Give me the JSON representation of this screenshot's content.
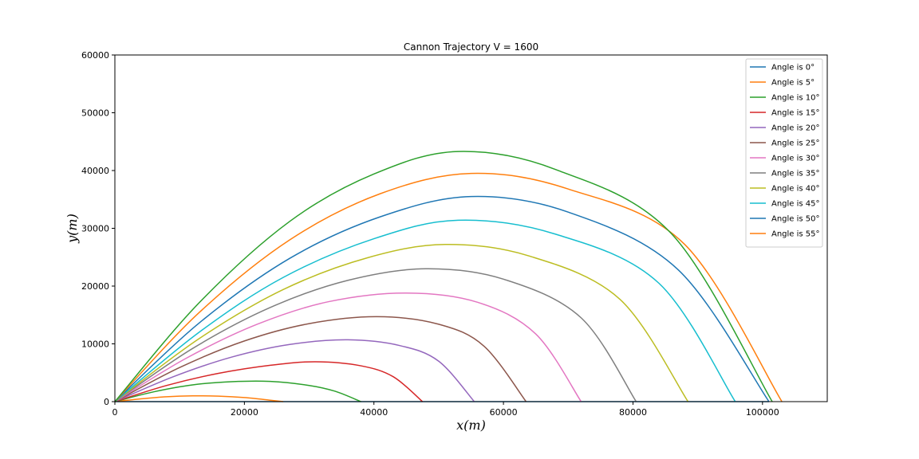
{
  "chart_data": {
    "type": "line",
    "title": "Cannon Trajectory V = 1600",
    "xlabel": "x(m)",
    "ylabel": "y(m)",
    "xlim": [
      0,
      110000
    ],
    "ylim": [
      0,
      60000
    ],
    "xticks": [
      0,
      20000,
      40000,
      60000,
      80000,
      100000
    ],
    "yticks": [
      0,
      10000,
      20000,
      30000,
      40000,
      50000,
      60000
    ],
    "xtick_labels": [
      "0",
      "20000",
      "40000",
      "60000",
      "80000",
      "100000"
    ],
    "ytick_labels": [
      "0",
      "10000",
      "20000",
      "30000",
      "40000",
      "50000",
      "60000"
    ],
    "grid": false,
    "legend_position": "top-right",
    "series": [
      {
        "name": "Angle is 0°",
        "color": "#1f77b4",
        "x": [
          0,
          8000,
          16000,
          24000,
          32000,
          40000,
          48000,
          56000,
          64000,
          72000,
          80000,
          88000,
          96000,
          101000
        ],
        "y": [
          0,
          0,
          0,
          0,
          0,
          0,
          0,
          0,
          0,
          0,
          0,
          0,
          0,
          0
        ]
      },
      {
        "name": "Angle is 5°",
        "color": "#ff7f0e",
        "x": [
          0,
          4000,
          8000,
          12000,
          16000,
          20000,
          24000,
          26000
        ],
        "y": [
          0,
          480,
          850,
          1000,
          950,
          700,
          240,
          0
        ]
      },
      {
        "name": "Angle is 10°",
        "color": "#2ca02c",
        "x": [
          0,
          6000,
          12000,
          18000,
          24000,
          30000,
          34000,
          38000
        ],
        "y": [
          0,
          1700,
          2900,
          3450,
          3500,
          2800,
          1800,
          0
        ]
      },
      {
        "name": "Angle is 15°",
        "color": "#d62728",
        "x": [
          0,
          8000,
          16000,
          24000,
          31000,
          38000,
          43000,
          47500
        ],
        "y": [
          0,
          2800,
          4900,
          6300,
          6900,
          6200,
          4300,
          0
        ]
      },
      {
        "name": "Angle is 20°",
        "color": "#9467bd",
        "x": [
          0,
          9000,
          18000,
          27000,
          36000,
          44000,
          50000,
          55500
        ],
        "y": [
          0,
          4300,
          7700,
          9900,
          10700,
          9700,
          7000,
          0
        ]
      },
      {
        "name": "Angle is 25°",
        "color": "#8c564b",
        "x": [
          0,
          10000,
          20000,
          30000,
          40500,
          50000,
          57000,
          63500
        ],
        "y": [
          0,
          5900,
          10500,
          13500,
          14700,
          13400,
          9600,
          0
        ]
      },
      {
        "name": "Angle is 30°",
        "color": "#e377c2",
        "x": [
          0,
          11000,
          22000,
          33000,
          45000,
          56000,
          65000,
          72000
        ],
        "y": [
          0,
          7500,
          13400,
          17300,
          18800,
          17200,
          11700,
          0
        ]
      },
      {
        "name": "Angle is 35°",
        "color": "#7f7f7f",
        "x": [
          0,
          12000,
          24000,
          36000,
          48000,
          60000,
          72000,
          80500
        ],
        "y": [
          0,
          9200,
          16300,
          21000,
          23000,
          21200,
          14500,
          0
        ]
      },
      {
        "name": "Angle is 40°",
        "color": "#bcbd22",
        "x": [
          0,
          13000,
          26000,
          39000,
          51000,
          64000,
          78000,
          88500
        ],
        "y": [
          0,
          10900,
          19400,
          24900,
          27200,
          25200,
          17700,
          0
        ]
      },
      {
        "name": "Angle is 45°",
        "color": "#17becf",
        "x": [
          0,
          13000,
          26000,
          40000,
          53000,
          68000,
          84000,
          95800
        ],
        "y": [
          0,
          12000,
          21500,
          28200,
          31400,
          29000,
          20500,
          0
        ]
      },
      {
        "name": "Angle is 50°",
        "color": "#1f77b4",
        "x": [
          0,
          13000,
          27000,
          41000,
          55000,
          70000,
          87000,
          101000
        ],
        "y": [
          0,
          13600,
          24800,
          32000,
          35500,
          32800,
          22800,
          0
        ]
      },
      {
        "name": "Angle is 55°",
        "color": "#ff7f0e",
        "x": [
          0,
          13000,
          27000,
          41000,
          55000,
          70000,
          88000,
          103000
        ],
        "y": [
          0,
          15400,
          28000,
          36000,
          39500,
          36800,
          27200,
          0
        ]
      },
      {
        "name": "",
        "color": "#2ca02c",
        "x": [
          0,
          13000,
          27000,
          40000,
          53000,
          68000,
          86000,
          101500
        ],
        "y": [
          0,
          17100,
          31200,
          39400,
          43300,
          40200,
          29000,
          0
        ]
      }
    ]
  }
}
